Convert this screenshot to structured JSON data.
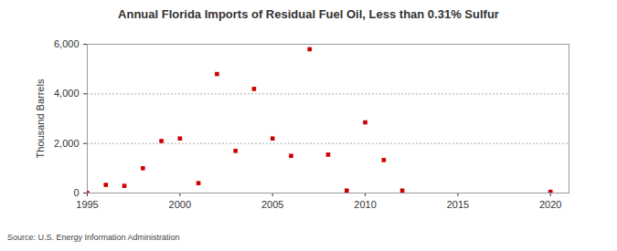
{
  "chart_data": {
    "type": "scatter",
    "title": "Annual Florida Imports of Residual Fuel Oil, Less than 0.31% Sulfur",
    "y_label": "Thousand Barrels",
    "source": "Source: U.S. Energy Information Administration",
    "x": [
      1995,
      1996,
      1997,
      1998,
      1999,
      2000,
      2001,
      2002,
      2003,
      2004,
      2005,
      2006,
      2007,
      2008,
      2009,
      2010,
      2011,
      2012,
      2020
    ],
    "values": [
      0,
      330,
      290,
      1000,
      2100,
      2200,
      400,
      4800,
      1700,
      4200,
      2200,
      1500,
      5800,
      1550,
      100,
      2850,
      1330,
      100,
      50
    ],
    "color": "#cc0000",
    "marker": "square",
    "xlim": [
      1995,
      2021
    ],
    "xticks": [
      1995,
      2000,
      2005,
      2010,
      2015,
      2020
    ],
    "ylim": [
      0,
      6000
    ],
    "yticks": [
      0,
      {
        "value": 2000,
        "label": "2,000"
      },
      {
        "value": 4000,
        "label": "4,000"
      },
      {
        "value": 6000,
        "label": "6,000"
      }
    ],
    "grid": true
  }
}
